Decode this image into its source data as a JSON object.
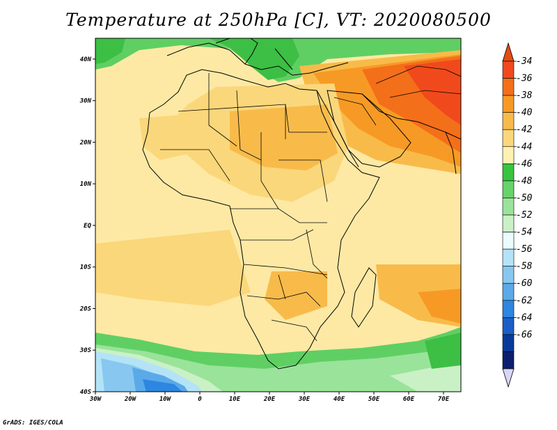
{
  "title": "Temperature at 250hPa [C], VT: 2020080500",
  "credit": "GrADS: IGES/COLA",
  "map": {
    "lon_range": [
      -30,
      75
    ],
    "lat_range": [
      -40,
      45
    ],
    "x_ticks": [
      "30W",
      "20W",
      "10W",
      "0",
      "10E",
      "20E",
      "30E",
      "40E",
      "50E",
      "60E",
      "70E"
    ],
    "x_tick_values": [
      -30,
      -20,
      -10,
      0,
      10,
      20,
      30,
      40,
      50,
      60,
      70
    ],
    "y_ticks": [
      "40S",
      "30S",
      "20S",
      "10S",
      "EQ",
      "10N",
      "20N",
      "30N",
      "40N"
    ],
    "y_tick_values": [
      -40,
      -30,
      -20,
      -10,
      0,
      10,
      20,
      30,
      40
    ]
  },
  "colorbar": {
    "labels": [
      "-34",
      "-36",
      "-38",
      "-40",
      "-42",
      "-44",
      "-46",
      "-48",
      "-50",
      "-52",
      "-54",
      "-56",
      "-58",
      "-60",
      "-62",
      "-64",
      "-66"
    ],
    "colors": [
      "#f04a1c",
      "#f46f19",
      "#f79a25",
      "#f8bb4a",
      "#fbd77b",
      "#fdf2b1",
      "#37c43e",
      "#66d46a",
      "#9ae39a",
      "#c9f1c5",
      "#eafcfd",
      "#b4e3f7",
      "#88c7ef",
      "#5aa9e8",
      "#2d86df",
      "#1b5fc6",
      "#0a3a99",
      "#0b1f70"
    ],
    "top_arrow_color": "#e64a14",
    "bottom_arrow_color": "#d8d6f4"
  }
}
